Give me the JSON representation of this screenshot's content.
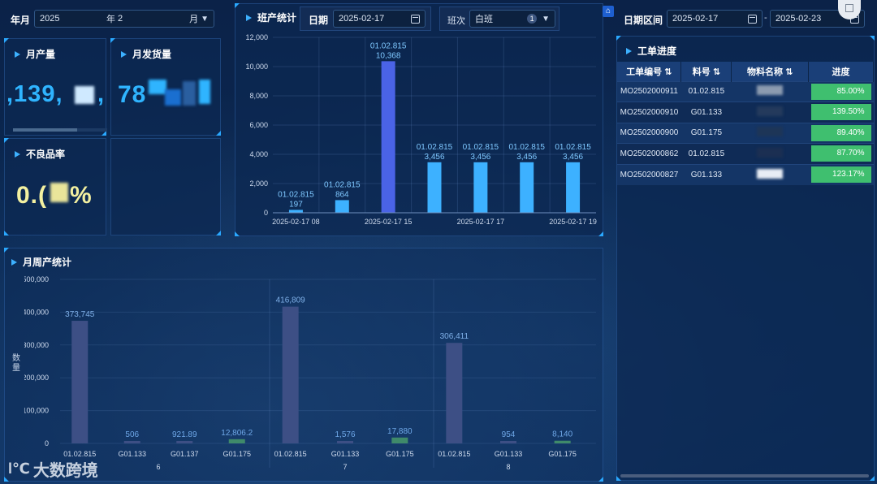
{
  "top_left": {
    "label": "年月",
    "year": "2025",
    "year_unit": "年",
    "month": "2",
    "month_unit": "月"
  },
  "cards": {
    "monthly_output": {
      "title": "月产量",
      "value": ",139,",
      "extra": ",",
      "progress": 0.68
    },
    "monthly_shipment": {
      "title": "月发货量",
      "value": "78"
    },
    "defect_rate": {
      "title": "不良品率",
      "value": "0.(",
      "suffix": "%"
    }
  },
  "shift_panel": {
    "title": "班产统计",
    "date_label": "日期",
    "date_value": "2025-02-17",
    "shift_label": "班次",
    "shift_value": "白班",
    "shift_count": "1"
  },
  "shift_chart": {
    "chart_data": {
      "type": "bar",
      "ylim": [
        0,
        12000
      ],
      "yticks": [
        "0",
        "2,000",
        "4,000",
        "6,000",
        "8,000",
        "10,000",
        "12,000"
      ],
      "bars": [
        {
          "name": "01.02.815",
          "value": 197,
          "label": "197"
        },
        {
          "name": "01.02.815",
          "value": 864,
          "label": "864"
        },
        {
          "name": "01.02.815",
          "value": 10368,
          "label": "10,368"
        },
        {
          "name": "01.02.815",
          "value": 3456,
          "label": "3,456"
        },
        {
          "name": "01.02.815",
          "value": 3456,
          "label": "3,456"
        },
        {
          "name": "01.02.815",
          "value": 3456,
          "label": "3,456"
        },
        {
          "name": "01.02.815",
          "value": 3456,
          "label": "3,456"
        }
      ],
      "xticks": [
        "2025-02-17 08",
        "2025-02-17 15",
        "2025-02-17 17",
        "2025-02-17 19"
      ],
      "highlight_index": 2
    }
  },
  "date_range": {
    "label": "日期区间",
    "start": "2025-02-17",
    "sep": "-",
    "end": "2025-02-23"
  },
  "work_order": {
    "title": "工单进度",
    "columns": [
      "工单编号",
      "料号",
      "物料名称",
      "进度"
    ],
    "rows": [
      {
        "id": "MO2502000911",
        "part": "01.02.815",
        "progress": "85.00%"
      },
      {
        "id": "MO2502000910",
        "part": "G01.133",
        "progress": "139.50%"
      },
      {
        "id": "MO2502000900",
        "part": "G01.175",
        "progress": "89.40%"
      },
      {
        "id": "MO2502000862",
        "part": "01.02.815",
        "progress": "87.70%"
      },
      {
        "id": "MO2502000827",
        "part": "G01.133",
        "progress": "123.17%"
      }
    ]
  },
  "weekly": {
    "title": "月周产统计",
    "ylabel": "数量",
    "chart_data": {
      "type": "bar",
      "ylim": [
        0,
        500000
      ],
      "yticks": [
        "0",
        "100,000",
        "200,000",
        "300,000",
        "400,000",
        "500,000"
      ],
      "groups": [
        {
          "name": "6",
          "bars": [
            {
              "name": "01.02.815",
              "value": 373745,
              "label": "373,745"
            },
            {
              "name": "G01.133",
              "value": 506,
              "label": "506"
            },
            {
              "name": "G01.137",
              "value": 921.89,
              "label": "921.89"
            },
            {
              "name": "G01.175",
              "value": 12806.2,
              "label": "12,806.2"
            }
          ]
        },
        {
          "name": "7",
          "bars": [
            {
              "name": "01.02.815",
              "value": 416809,
              "label": "416,809"
            },
            {
              "name": "G01.133",
              "value": 1576,
              "label": "1,576"
            },
            {
              "name": "G01.175",
              "value": 17880,
              "label": "17,880"
            }
          ]
        },
        {
          "name": "8",
          "bars": [
            {
              "name": "01.02.815",
              "value": 306411,
              "label": "306,411"
            },
            {
              "name": "G01.133",
              "value": 954,
              "label": "954"
            },
            {
              "name": "G01.175",
              "value": 8140,
              "label": "8,140"
            }
          ]
        }
      ]
    }
  },
  "watermark": {
    "text": "大数跨境",
    "logo": "l℃"
  },
  "colors": {
    "accent": "#2fb4ff",
    "bar_light": "#3db1ff",
    "bar_highlight": "#4a63e6",
    "bar_weekly": "#3d4f85",
    "bar_green": "#3f8a6a",
    "progress": "#3fbf6f"
  }
}
